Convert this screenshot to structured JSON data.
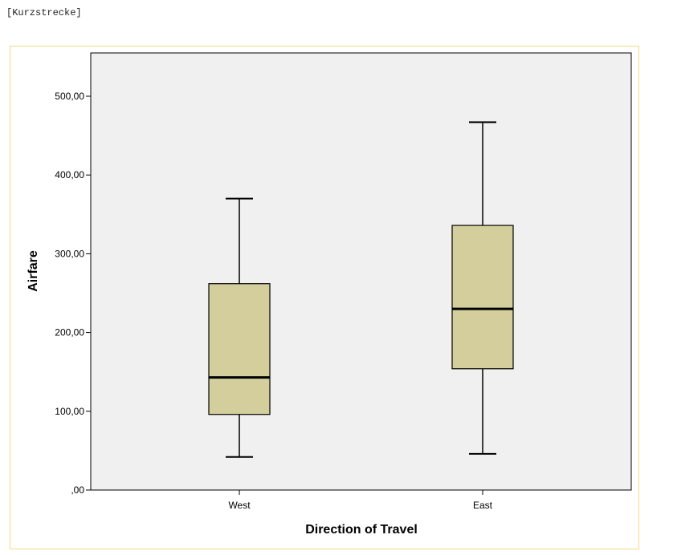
{
  "dataset_label": "[Kurzstrecke]",
  "chart_data": {
    "type": "box",
    "xlabel": "Direction of Travel",
    "ylabel": "Airfare",
    "ylim": [
      0,
      550
    ],
    "y_ticks": [
      0,
      100,
      200,
      300,
      400,
      500
    ],
    "y_tick_labels": [
      ",00",
      "100,00",
      "200,00",
      "300,00",
      "400,00",
      "500,00"
    ],
    "categories": [
      "West",
      "East"
    ],
    "boxes": [
      {
        "category": "West",
        "min": 42,
        "q1": 96,
        "median": 143,
        "q3": 262,
        "max": 370
      },
      {
        "category": "East",
        "min": 46,
        "q1": 154,
        "median": 230,
        "q3": 336,
        "max": 467
      }
    ],
    "grid": false,
    "plot_background": "#f0f0f0",
    "box_fill": "#d3ce9b",
    "frame_border": "#f4d98a"
  }
}
